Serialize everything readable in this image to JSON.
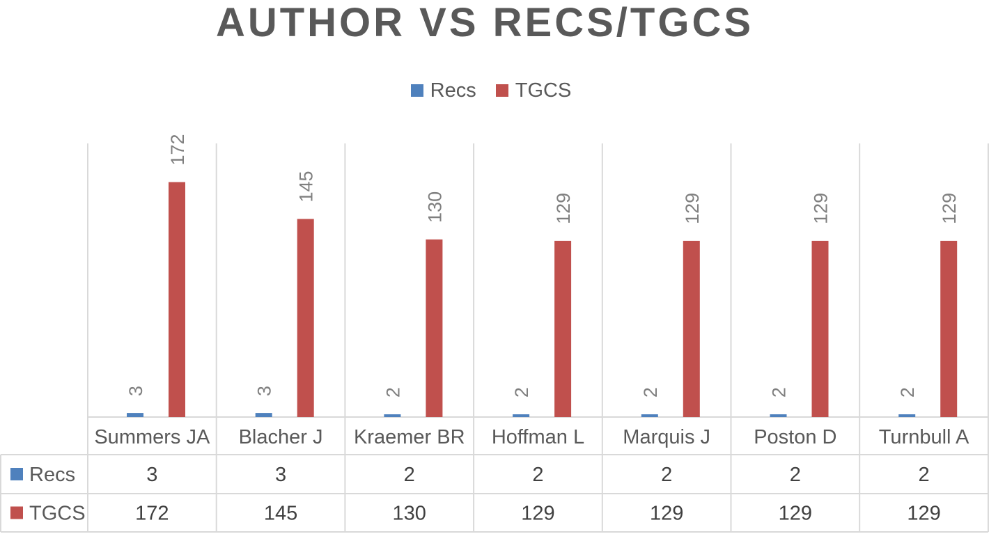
{
  "chart_data": {
    "type": "bar",
    "title": "AUTHOR VS RECS/TGCS",
    "xlabel": "",
    "ylabel": "",
    "categories": [
      "Summers JA",
      "Blacher J",
      "Kraemer BR",
      "Hoffman L",
      "Marquis J",
      "Poston D",
      "Turnbull A"
    ],
    "series": [
      {
        "name": "Recs",
        "values": [
          3,
          3,
          2,
          2,
          2,
          2,
          2
        ],
        "color": "#4F81BD"
      },
      {
        "name": "TGCS",
        "values": [
          172,
          145,
          130,
          129,
          129,
          129,
          129
        ],
        "color": "#C0504D"
      }
    ],
    "ylim": [
      0,
      200
    ],
    "grid": false,
    "legend_position": "top",
    "data_table": true
  }
}
